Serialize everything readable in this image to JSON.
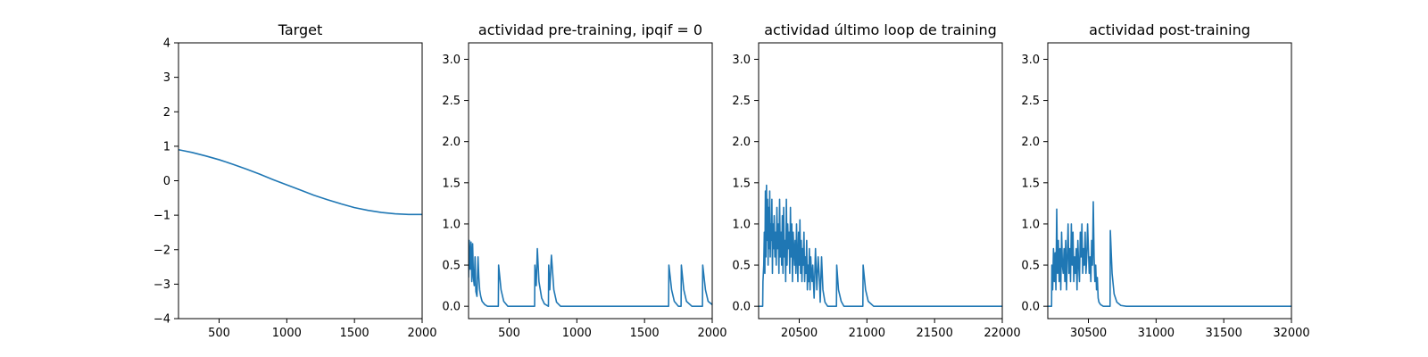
{
  "chart_data": [
    {
      "type": "line",
      "title": "Target",
      "xlim": [
        200,
        2000
      ],
      "ylim": [
        -4,
        4
      ],
      "xticks": [
        500,
        1000,
        1500,
        2000
      ],
      "xtick_labels": [
        "500",
        "1000",
        "1500",
        "2000"
      ],
      "yticks": [
        -4,
        -3,
        -2,
        -1,
        0,
        1,
        2,
        3,
        4
      ],
      "ytick_labels": [
        "−4",
        "−3",
        "−2",
        "−1",
        "0",
        "1",
        "2",
        "3",
        "4"
      ],
      "grid": false,
      "legend": null,
      "series": [
        {
          "color": "#1f77b4",
          "x": [
            200,
            300,
            400,
            500,
            600,
            700,
            800,
            900,
            1000,
            1100,
            1200,
            1300,
            1400,
            1500,
            1600,
            1700,
            1800,
            1900,
            2000
          ],
          "y": [
            0.9,
            0.82,
            0.72,
            0.61,
            0.48,
            0.34,
            0.19,
            0.03,
            -0.12,
            -0.27,
            -0.42,
            -0.55,
            -0.67,
            -0.78,
            -0.86,
            -0.92,
            -0.96,
            -0.98,
            -0.98
          ]
        }
      ]
    },
    {
      "type": "line",
      "title": "actividad pre-training, ipqif = 0",
      "xlim": [
        200,
        2000
      ],
      "ylim": [
        -0.15,
        3.2
      ],
      "xticks": [
        500,
        1000,
        1500,
        2000
      ],
      "xtick_labels": [
        "500",
        "1000",
        "1500",
        "2000"
      ],
      "yticks": [
        0.0,
        0.5,
        1.0,
        1.5,
        2.0,
        2.5,
        3.0
      ],
      "ytick_labels": [
        "0.0",
        "0.5",
        "1.0",
        "1.5",
        "2.0",
        "2.5",
        "3.0"
      ],
      "grid": false,
      "legend": null,
      "series": [
        {
          "color": "#1f77b4",
          "x": [
            200,
            205,
            212,
            218,
            224,
            230,
            236,
            242,
            248,
            254,
            262,
            270,
            276,
            282,
            290,
            300,
            320,
            340,
            360,
            420,
            422,
            440,
            460,
            490,
            520,
            560,
            600,
            650,
            688,
            690,
            700,
            708,
            720,
            740,
            760,
            790,
            792,
            800,
            812,
            830,
            850,
            880,
            920,
            1000,
            1200,
            1400,
            1600,
            1678,
            1680,
            1700,
            1720,
            1750,
            1770,
            1772,
            1790,
            1810,
            1850,
            1900,
            1928,
            1930,
            1950,
            1970,
            2000
          ],
          "y": [
            0.35,
            0.8,
            0.45,
            0.78,
            0.3,
            0.76,
            0.35,
            0.25,
            0.6,
            0.18,
            0.12,
            0.6,
            0.35,
            0.2,
            0.12,
            0.06,
            0.02,
            0.0,
            0.0,
            0.0,
            0.5,
            0.2,
            0.06,
            0.0,
            0.0,
            0.0,
            0.0,
            0.0,
            0.0,
            0.5,
            0.25,
            0.7,
            0.3,
            0.1,
            0.03,
            0.0,
            0.5,
            0.2,
            0.62,
            0.2,
            0.05,
            0.0,
            0.0,
            0.0,
            0.0,
            0.0,
            0.0,
            0.0,
            0.5,
            0.2,
            0.06,
            0.0,
            0.0,
            0.5,
            0.2,
            0.06,
            0.0,
            0.0,
            0.0,
            0.5,
            0.2,
            0.06,
            0.02
          ]
        }
      ]
    },
    {
      "type": "line",
      "title": "actividad último loop de training",
      "xlim": [
        20200,
        22000
      ],
      "ylim": [
        -0.15,
        3.2
      ],
      "xticks": [
        20500,
        21000,
        21500,
        22000
      ],
      "xtick_labels": [
        "20500",
        "21000",
        "21500",
        "22000"
      ],
      "yticks": [
        0.0,
        0.5,
        1.0,
        1.5,
        2.0,
        2.5,
        3.0
      ],
      "ytick_labels": [
        "0.0",
        "0.5",
        "1.0",
        "1.5",
        "2.0",
        "2.5",
        "3.0"
      ],
      "grid": false,
      "legend": null,
      "series": [
        {
          "color": "#1f77b4",
          "x": [
            20200,
            20230,
            20232,
            20238,
            20242,
            20246,
            20250,
            20254,
            20258,
            20262,
            20266,
            20270,
            20274,
            20278,
            20282,
            20286,
            20290,
            20294,
            20298,
            20302,
            20306,
            20310,
            20315,
            20320,
            20325,
            20330,
            20335,
            20340,
            20345,
            20350,
            20355,
            20360,
            20365,
            20370,
            20375,
            20380,
            20385,
            20390,
            20395,
            20400,
            20405,
            20410,
            20415,
            20420,
            20425,
            20430,
            20435,
            20440,
            20445,
            20450,
            20455,
            20460,
            20465,
            20470,
            20475,
            20480,
            20485,
            20490,
            20495,
            20500,
            20505,
            20510,
            20515,
            20520,
            20525,
            20530,
            20535,
            20540,
            20545,
            20550,
            20555,
            20560,
            20565,
            20570,
            20575,
            20580,
            20585,
            20590,
            20595,
            20600,
            20610,
            20620,
            20630,
            20640,
            20650,
            20655,
            20665,
            20675,
            20690,
            20710,
            20750,
            20775,
            20777,
            20790,
            20810,
            20830,
            20860,
            20900,
            20970,
            20972,
            20990,
            21010,
            21050,
            21100,
            21300,
            21600,
            22000
          ],
          "y": [
            0.0,
            0.0,
            0.3,
            0.5,
            0.9,
            0.4,
            1.4,
            0.6,
            1.47,
            0.8,
            1.3,
            0.5,
            1.2,
            0.7,
            1.4,
            0.6,
            1.0,
            0.8,
            1.3,
            0.4,
            1.0,
            0.7,
            1.1,
            0.6,
            0.9,
            0.5,
            1.2,
            0.7,
            1.0,
            0.4,
            1.3,
            0.6,
            0.9,
            0.5,
            1.1,
            0.4,
            1.2,
            0.6,
            0.8,
            0.3,
            1.3,
            0.5,
            1.0,
            0.7,
            0.9,
            0.4,
            1.2,
            0.6,
            1.0,
            0.3,
            0.9,
            0.7,
            0.5,
            0.8,
            0.4,
            1.0,
            0.6,
            0.3,
            0.9,
            0.5,
            1.05,
            0.4,
            0.8,
            0.3,
            0.7,
            0.5,
            0.9,
            0.3,
            0.6,
            0.4,
            0.8,
            0.2,
            0.5,
            0.3,
            0.7,
            0.2,
            0.6,
            0.4,
            0.3,
            0.5,
            0.1,
            0.7,
            0.2,
            0.6,
            0.3,
            0.05,
            0.6,
            0.2,
            0.05,
            0.0,
            0.0,
            0.0,
            0.5,
            0.2,
            0.06,
            0.0,
            0.0,
            0.0,
            0.0,
            0.5,
            0.2,
            0.06,
            0.0,
            0.0,
            0.0,
            0.0,
            0.0
          ]
        }
      ]
    },
    {
      "type": "line",
      "title": "actividad post-training",
      "xlim": [
        30200,
        32000
      ],
      "ylim": [
        -0.15,
        3.2
      ],
      "xticks": [
        30500,
        31000,
        31500,
        32000
      ],
      "xtick_labels": [
        "30500",
        "31000",
        "31500",
        "32000"
      ],
      "yticks": [
        0.0,
        0.5,
        1.0,
        1.5,
        2.0,
        2.5,
        3.0
      ],
      "ytick_labels": [
        "0.0",
        "0.5",
        "1.0",
        "1.5",
        "2.0",
        "2.5",
        "3.0"
      ],
      "grid": false,
      "legend": null,
      "series": [
        {
          "color": "#1f77b4",
          "x": [
            30200,
            30228,
            30230,
            30236,
            30242,
            30248,
            30254,
            30260,
            30266,
            30272,
            30278,
            30284,
            30290,
            30296,
            30302,
            30308,
            30314,
            30320,
            30326,
            30332,
            30338,
            30344,
            30350,
            30356,
            30362,
            30368,
            30374,
            30380,
            30386,
            30392,
            30398,
            30404,
            30410,
            30416,
            30422,
            30428,
            30434,
            30440,
            30446,
            30452,
            30458,
            30464,
            30470,
            30476,
            30482,
            30488,
            30494,
            30500,
            30506,
            30512,
            30518,
            30524,
            30530,
            30536,
            30542,
            30548,
            30554,
            30560,
            30566,
            30572,
            30578,
            30590,
            30610,
            30630,
            30650,
            30660,
            30662,
            30675,
            30690,
            30710,
            30740,
            30780,
            30850,
            31000,
            31500,
            32000
          ],
          "y": [
            0.0,
            0.0,
            0.5,
            0.2,
            0.7,
            0.3,
            0.65,
            0.2,
            1.18,
            0.4,
            0.8,
            0.3,
            0.7,
            0.2,
            0.9,
            0.5,
            0.4,
            0.7,
            0.3,
            0.8,
            0.2,
            0.6,
            1.0,
            0.4,
            0.7,
            0.3,
            1.0,
            0.5,
            0.9,
            0.3,
            0.6,
            0.4,
            0.7,
            0.2,
            0.8,
            0.5,
            0.3,
            0.9,
            0.6,
            1.0,
            0.4,
            0.7,
            0.5,
            0.9,
            0.4,
            0.6,
            1.0,
            0.7,
            0.4,
            0.6,
            0.3,
            0.8,
            0.5,
            1.27,
            0.6,
            0.3,
            0.5,
            0.2,
            0.35,
            0.1,
            0.05,
            0.02,
            0.0,
            0.0,
            0.0,
            0.0,
            0.92,
            0.4,
            0.15,
            0.05,
            0.01,
            0.0,
            0.0,
            0.0,
            0.0,
            0.0
          ]
        }
      ]
    }
  ]
}
